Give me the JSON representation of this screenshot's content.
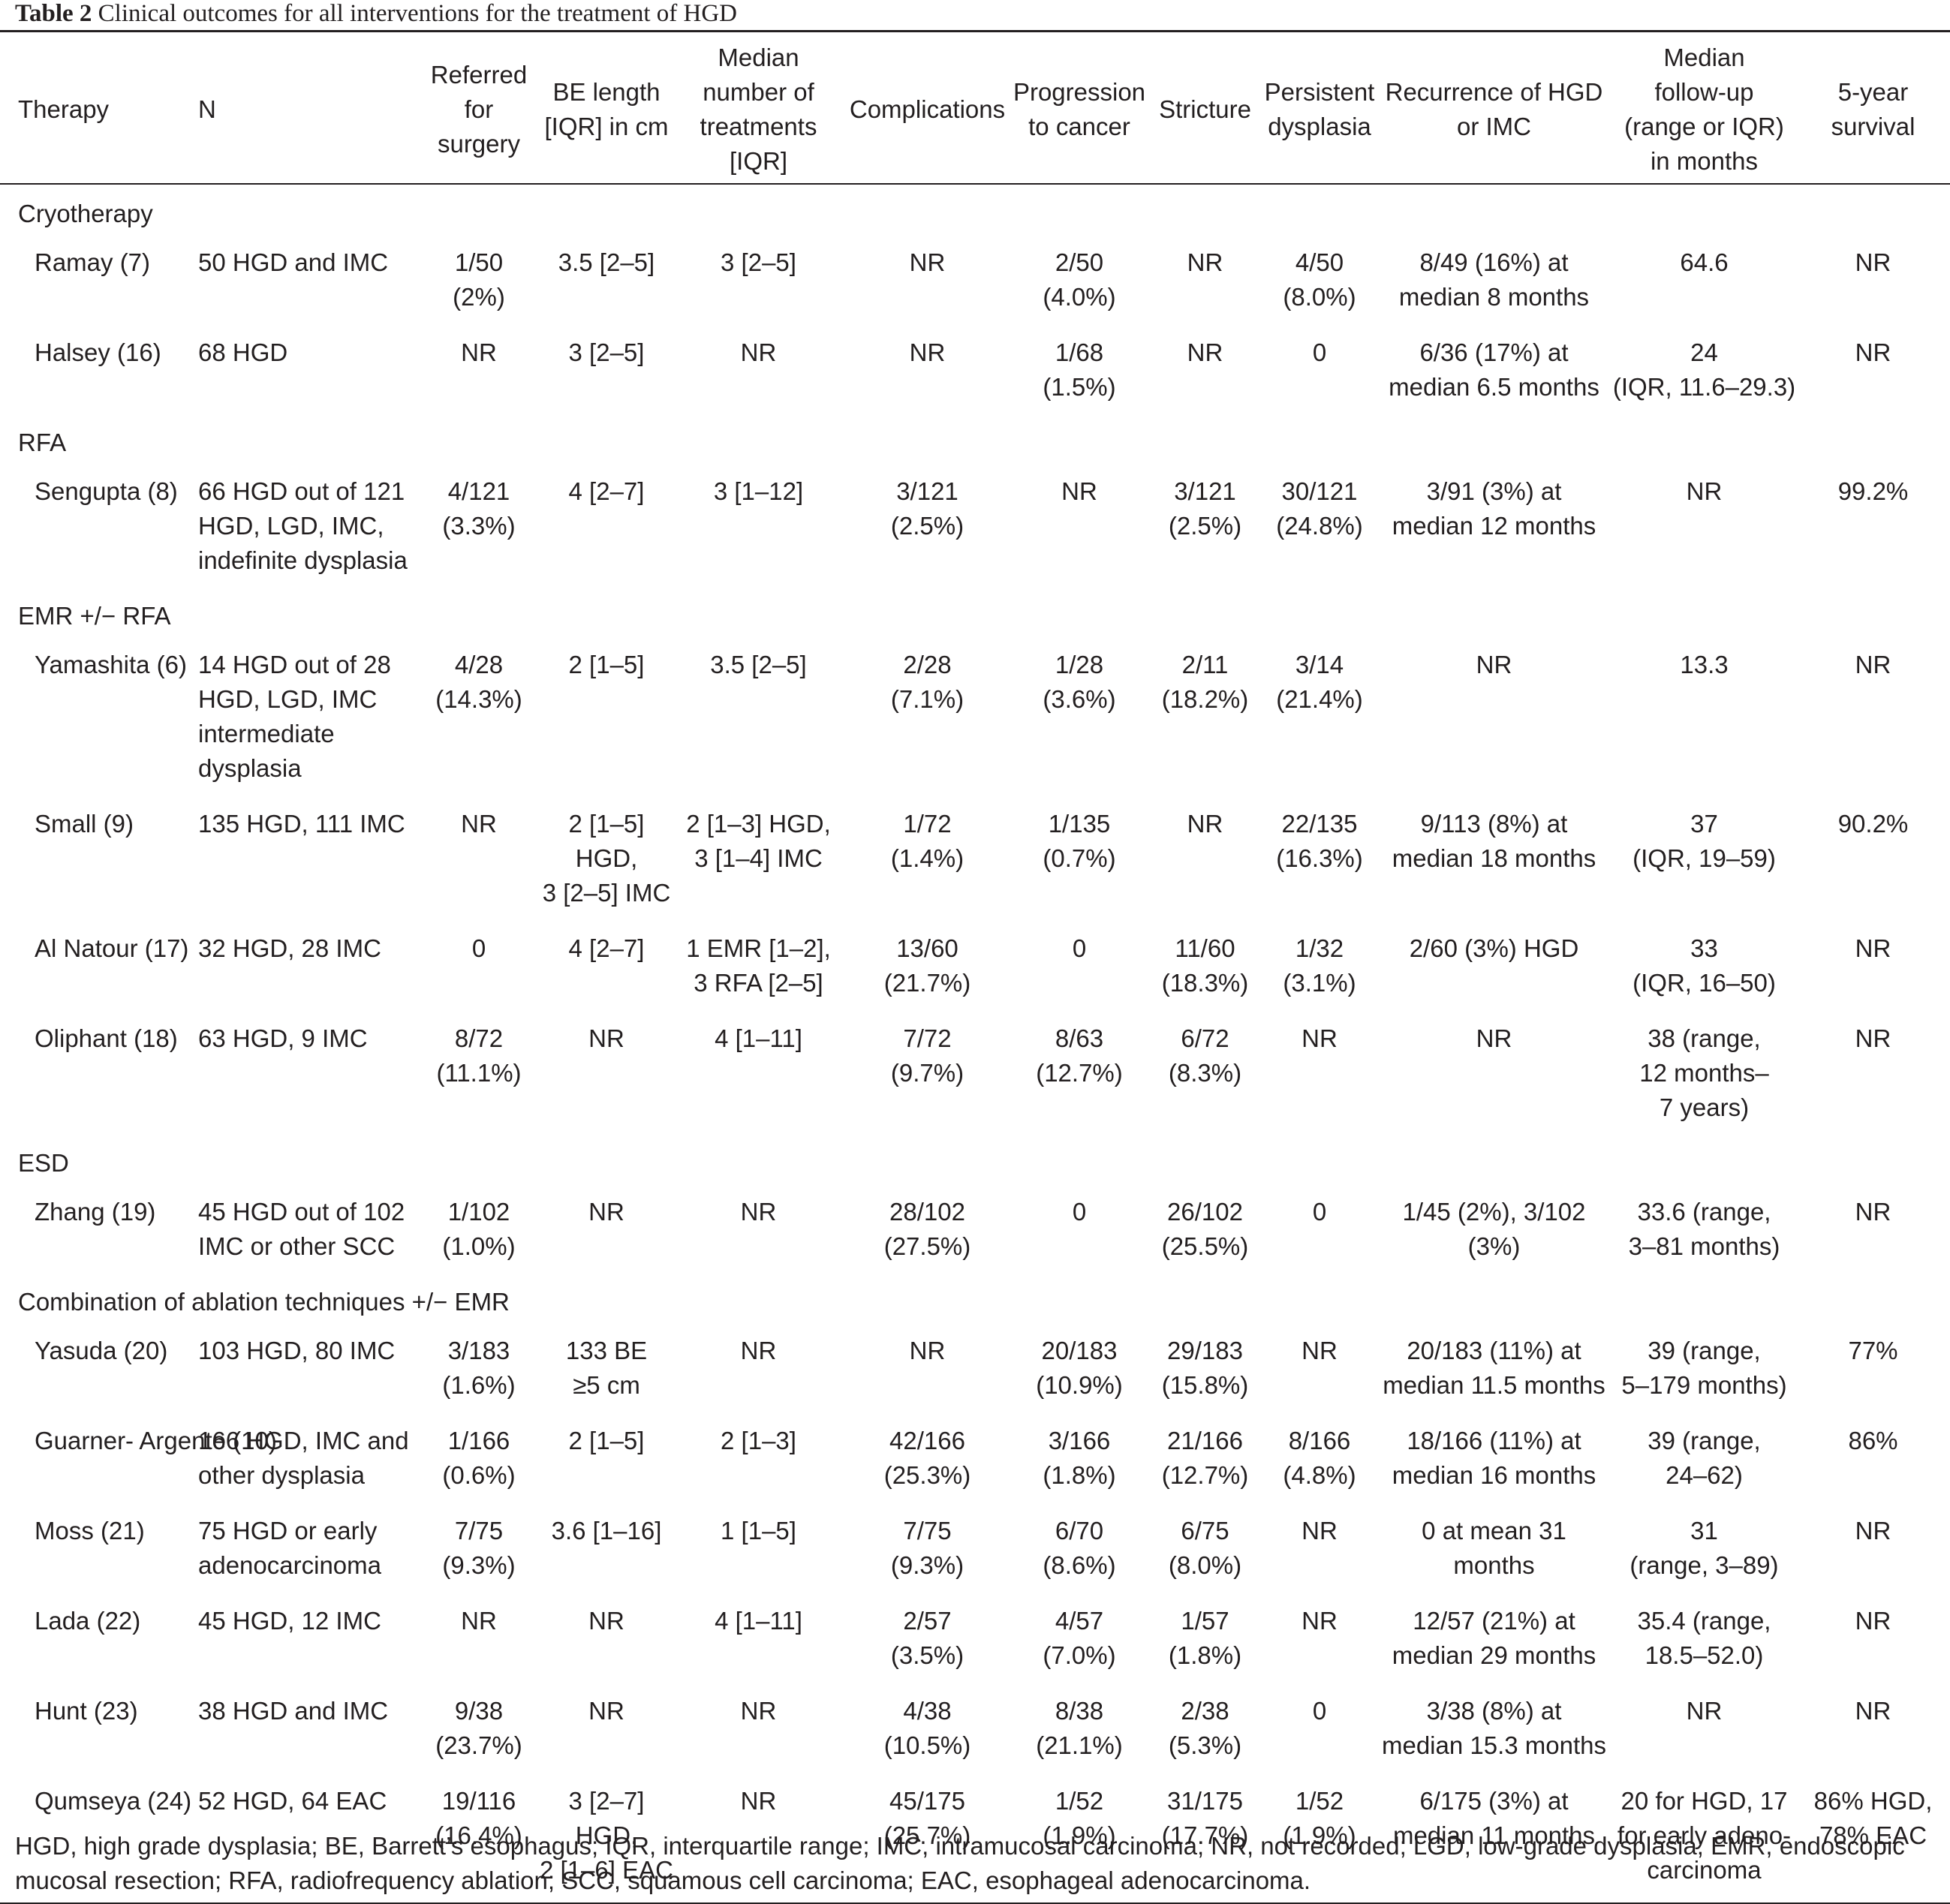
{
  "caption": {
    "label": "Table 2",
    "title": "Clinical outcomes for all interventions for the treatment of HGD"
  },
  "headers": [
    "Therapy",
    "N",
    "Referred\nfor\nsurgery",
    "BE length\n[IQR] in cm",
    "Median\nnumber of\ntreatments\n[IQR]",
    "Complications",
    "Progression\nto cancer",
    "Stricture",
    "Persistent\ndysplasia",
    "Recurrence of HGD\nor IMC",
    "Median\nfollow-up\n(range or IQR)\nin months",
    "5-year\nsurvival"
  ],
  "groups": [
    {
      "name": "Cryotherapy",
      "rows": [
        {
          "study": "Ramay (7)",
          "n": "50 HGD and IMC",
          "surgery": "1/50\n(2%)",
          "be_length": "3.5 [2–5]",
          "treatments": "3 [2–5]",
          "complications": "NR",
          "progression": "2/50\n(4.0%)",
          "stricture": "NR",
          "persistent": "4/50\n(8.0%)",
          "recurrence": "8/49 (16%) at\nmedian 8 months",
          "followup": "64.6",
          "survival": "NR"
        },
        {
          "study": "Halsey (16)",
          "n": "68 HGD",
          "surgery": "NR",
          "be_length": "3 [2–5]",
          "treatments": "NR",
          "complications": "NR",
          "progression": "1/68\n(1.5%)",
          "stricture": "NR",
          "persistent": "0",
          "recurrence": "6/36 (17%) at\nmedian 6.5 months",
          "followup": "24\n(IQR, 11.6–29.3)",
          "survival": "NR"
        }
      ]
    },
    {
      "name": "RFA",
      "rows": [
        {
          "study": "Sengupta (8)",
          "n": "66 HGD out of 121\nHGD, LGD, IMC,\nindefinite dysplasia",
          "surgery": "4/121\n(3.3%)",
          "be_length": "4 [2–7]",
          "treatments": "3 [1–12]",
          "complications": "3/121\n(2.5%)",
          "progression": "NR",
          "stricture": "3/121\n(2.5%)",
          "persistent": "30/121\n(24.8%)",
          "recurrence": "3/91 (3%) at\nmedian 12 months",
          "followup": "NR",
          "survival": "99.2%"
        }
      ]
    },
    {
      "name": "EMR +/− RFA",
      "rows": [
        {
          "study": "Yamashita (6)",
          "n": "14 HGD out of 28\nHGD, LGD, IMC\nintermediate\ndysplasia",
          "surgery": "4/28\n(14.3%)",
          "be_length": "2 [1–5]",
          "treatments": "3.5 [2–5]",
          "complications": "2/28\n(7.1%)",
          "progression": "1/28\n(3.6%)",
          "stricture": "2/11\n(18.2%)",
          "persistent": "3/14\n(21.4%)",
          "recurrence": "NR",
          "followup": "13.3",
          "survival": "NR"
        },
        {
          "study": "Small (9)",
          "n": "135 HGD, 111 IMC",
          "surgery": "NR",
          "be_length": "2 [1–5] HGD,\n3 [2–5] IMC",
          "treatments": "2 [1–3] HGD,\n3 [1–4] IMC",
          "complications": "1/72\n(1.4%)",
          "progression": "1/135\n(0.7%)",
          "stricture": "NR",
          "persistent": "22/135\n(16.3%)",
          "recurrence": "9/113 (8%) at\nmedian 18 months",
          "followup": "37\n(IQR, 19–59)",
          "survival": "90.2%"
        },
        {
          "study": "Al Natour (17)",
          "n": "32 HGD, 28 IMC",
          "surgery": "0",
          "be_length": "4 [2–7]",
          "treatments": "1 EMR [1–2],\n3 RFA [2–5]",
          "complications": "13/60\n(21.7%)",
          "progression": "0",
          "stricture": "11/60\n(18.3%)",
          "persistent": "1/32\n(3.1%)",
          "recurrence": "2/60 (3%) HGD",
          "followup": "33\n(IQR, 16–50)",
          "survival": "NR"
        },
        {
          "study": "Oliphant (18)",
          "n": "63 HGD, 9 IMC",
          "surgery": "8/72\n(11.1%)",
          "be_length": "NR",
          "treatments": "4 [1–11]",
          "complications": "7/72\n(9.7%)",
          "progression": "8/63\n(12.7%)",
          "stricture": "6/72\n(8.3%)",
          "persistent": "NR",
          "recurrence": "NR",
          "followup": "38 (range,\n12 months–\n7 years)",
          "survival": "NR"
        }
      ]
    },
    {
      "name": "ESD",
      "rows": [
        {
          "study": "Zhang (19)",
          "n": "45 HGD out of 102\nIMC or other SCC",
          "surgery": "1/102\n(1.0%)",
          "be_length": "NR",
          "treatments": "NR",
          "complications": "28/102\n(27.5%)",
          "progression": "0",
          "stricture": "26/102\n(25.5%)",
          "persistent": "0",
          "recurrence": "1/45 (2%), 3/102\n(3%)",
          "followup": "33.6 (range,\n3–81 months)",
          "survival": "NR"
        }
      ]
    },
    {
      "name": "Combination of ablation techniques +/− EMR",
      "rows": [
        {
          "study": "Yasuda (20)",
          "n": "103 HGD, 80 IMC",
          "surgery": "3/183\n(1.6%)",
          "be_length": "133 BE\n≥5 cm",
          "treatments": "NR",
          "complications": "NR",
          "progression": "20/183\n(10.9%)",
          "stricture": "29/183\n(15.8%)",
          "persistent": "NR",
          "recurrence": "20/183 (11%) at\nmedian 11.5 months",
          "followup": "39 (range,\n5–179 months)",
          "survival": "77%"
        },
        {
          "study": "Guarner-\nArgente (10)",
          "n": "166 HGD, IMC and\nother dysplasia",
          "surgery": "1/166\n(0.6%)",
          "be_length": "2 [1–5]",
          "treatments": "2 [1–3]",
          "complications": "42/166\n(25.3%)",
          "progression": "3/166\n(1.8%)",
          "stricture": "21/166\n(12.7%)",
          "persistent": "8/166\n(4.8%)",
          "recurrence": "18/166 (11%) at\nmedian 16 months",
          "followup": "39 (range,\n24–62)",
          "survival": "86%"
        },
        {
          "study": "Moss (21)",
          "n": "75 HGD or early\nadenocarcinoma",
          "surgery": "7/75\n(9.3%)",
          "be_length": "3.6 [1–16]",
          "treatments": "1 [1–5]",
          "complications": "7/75\n(9.3%)",
          "progression": "6/70\n(8.6%)",
          "stricture": "6/75\n(8.0%)",
          "persistent": "NR",
          "recurrence": "0 at mean 31\nmonths",
          "followup": "31\n(range, 3–89)",
          "survival": "NR"
        },
        {
          "study": "Lada (22)",
          "n": "45 HGD, 12 IMC",
          "surgery": "NR",
          "be_length": "NR",
          "treatments": "4 [1–11]",
          "complications": "2/57\n(3.5%)",
          "progression": "4/57\n(7.0%)",
          "stricture": "1/57\n(1.8%)",
          "persistent": "NR",
          "recurrence": "12/57 (21%) at\nmedian 29 months",
          "followup": "35.4 (range,\n18.5–52.0)",
          "survival": "NR"
        },
        {
          "study": "Hunt (23)",
          "n": "38 HGD and IMC",
          "surgery": "9/38\n(23.7%)",
          "be_length": "NR",
          "treatments": "NR",
          "complications": "4/38\n(10.5%)",
          "progression": "8/38\n(21.1%)",
          "stricture": "2/38\n(5.3%)",
          "persistent": "0",
          "recurrence": "3/38 (8%) at\nmedian 15.3 months",
          "followup": "NR",
          "survival": "NR"
        },
        {
          "study": "Qumseya (24)",
          "n": "52 HGD, 64 EAC",
          "surgery": "19/116\n(16.4%)",
          "be_length": "3 [2–7] HGD,\n2 [1–6] EAC",
          "treatments": "NR",
          "complications": "45/175\n(25.7%)",
          "progression": "1/52\n(1.9%)",
          "stricture": "31/175\n(17.7%)",
          "persistent": "1/52\n(1.9%)",
          "recurrence": "6/175 (3%) at\nmedian 11 months",
          "followup": "20 for HGD, 17\nfor early adeno-\ncarcinoma",
          "survival": "86% HGD,\n78% EAC"
        }
      ]
    }
  ],
  "footnote": "HGD, high grade dysplasia; BE, Barrett’s esophagus; IQR, interquartile range; IMC, intramucosal carcinoma; NR, not recorded; LGD, low-grade dysplasia; EMR, endoscopic mucosal resection; RFA, radiofrequency ablation; SCC, squamous cell carcinoma; EAC, esophageal adenocarcinoma."
}
